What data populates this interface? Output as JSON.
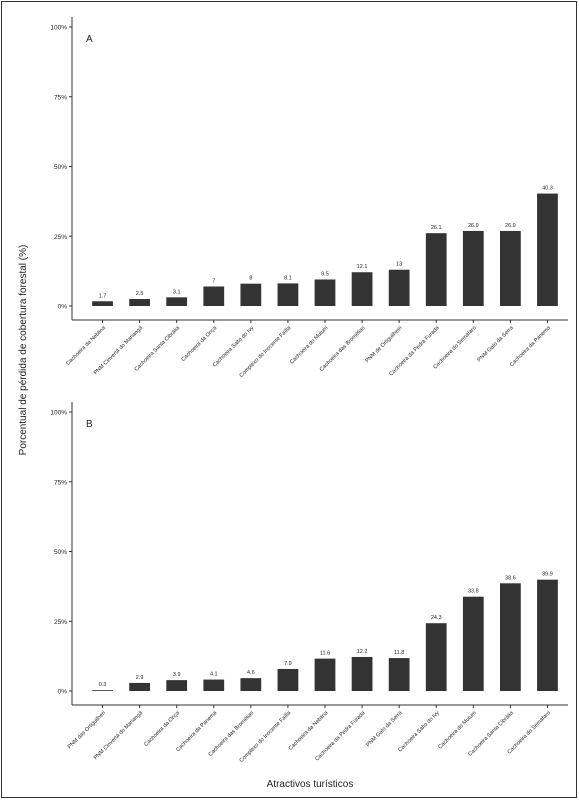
{
  "y_axis_title": "Porcentual de pérdida de cobertura forestal (%)",
  "x_axis_title": "Atractivos turísticos",
  "chart_data": [
    {
      "type": "bar",
      "panel_label": "A",
      "ylabel": "Porcentual de pérdida de cobertura forestal (%)",
      "ylim": [
        0,
        100
      ],
      "yticks": [
        "0%",
        "25%",
        "50%",
        "75%",
        "100%"
      ],
      "bar_color": "#333333",
      "categories": [
        "Cachoeira da Neblina",
        "PNM Cinvertá do Mariangá",
        "Cachoeira Santa Cibrália",
        "Cachoeira da Onça",
        "Cachoeira Salto do Ivy",
        "Complexo do Inocente Faílla",
        "Cachoeira do Mutum",
        "Cachoeira das Bromélias",
        "PNM de Ortiguilheiri",
        "Cachoeira da Pedra Furada",
        "Cachoeira do Semáfaro",
        "PNM Galo da Serra",
        "Cachoeira da Panema"
      ],
      "values": [
        1.7,
        2.5,
        3.1,
        7,
        8,
        8.1,
        9.5,
        12.1,
        13,
        26.1,
        26.9,
        26.9,
        40.3
      ],
      "value_labels": [
        "1.7",
        "2.5",
        "3.1",
        "7",
        "8",
        "8.1",
        "9.5",
        "12.1",
        "13",
        "26.1",
        "26.9",
        "26.9",
        "40.3"
      ]
    },
    {
      "type": "bar",
      "panel_label": "B",
      "ylabel": "Porcentual de pérdida de cobertura forestal (%)",
      "xlabel": "Atractivos turísticos",
      "ylim": [
        0,
        100
      ],
      "yticks": [
        "0%",
        "25%",
        "50%",
        "75%",
        "100%"
      ],
      "bar_color": "#333333",
      "categories": [
        "PNM das Ortiguilheri",
        "PNM Cinvertá do Mariangá",
        "Cachoeira da Onça",
        "Cachoeira da Panema",
        "Cachoeira das Bromélias",
        "Complexo do Inocente Faílla",
        "Cachoeira da Neblina",
        "Cachoeira da Pedra Furada",
        "PNM Galo da Serra",
        "Cachoeira Salto do Ivy",
        "Cachoeira do Mutum",
        "Cachoeira Santa Cibrália",
        "Cachoeira do Semáfaro"
      ],
      "values": [
        0.3,
        2.9,
        3.9,
        4.1,
        4.6,
        7.9,
        11.6,
        12.2,
        11.8,
        24.3,
        33.8,
        38.6,
        39.9
      ],
      "value_labels": [
        "0.3",
        "2.9",
        "3.9",
        "4.1",
        "4.6",
        "7.9",
        "11.6",
        "12.2",
        "11.8",
        "24.3",
        "33.8",
        "38.6",
        "39.9"
      ]
    }
  ]
}
